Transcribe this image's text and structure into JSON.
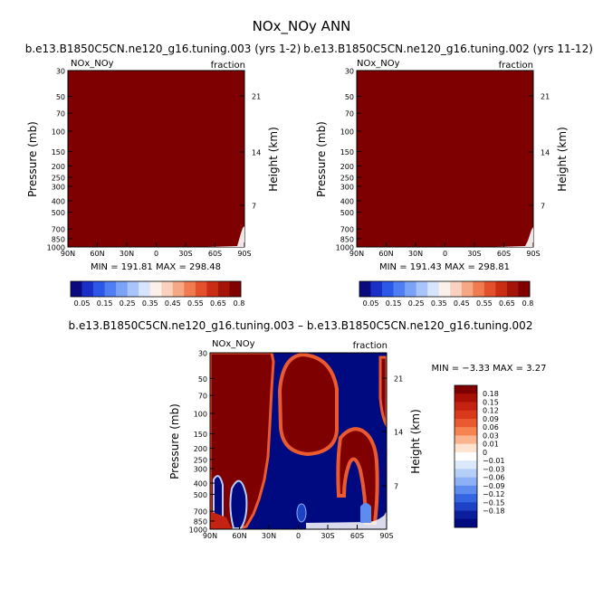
{
  "title": "NOx_NOy ANN",
  "chart_data": [
    {
      "type": "heatmap",
      "title": "b.e13.B1850C5CN.ne120_g16.tuning.003 (yrs 1-2)",
      "variable": "NOx_NOy",
      "units": "fraction",
      "ylabel": "Pressure (mb)",
      "ylabel_right": "Height (km)",
      "xticks": [
        "90N",
        "60N",
        "30N",
        "0",
        "30S",
        "60S",
        "90S"
      ],
      "yticks": [
        "30",
        "50",
        "70",
        "100",
        "150",
        "200",
        "250",
        "300",
        "400",
        "500",
        "700",
        "850",
        "1000"
      ],
      "yticks_right": [
        "21",
        "14",
        "7"
      ],
      "stats": "MIN = 191.81   MAX = 298.48",
      "colorbar_labels": [
        "0.05",
        "0.15",
        "0.25",
        "0.35",
        "0.45",
        "0.55",
        "0.65",
        "0.8"
      ],
      "field": "uniform maximum (above 0.8) everywhere"
    },
    {
      "type": "heatmap",
      "title": "b.e13.B1850C5CN.ne120_g16.tuning.002 (yrs 11-12)",
      "variable": "NOx_NOy",
      "units": "fraction",
      "ylabel": "Pressure (mb)",
      "ylabel_right": "Height (km)",
      "xticks": [
        "90N",
        "60N",
        "30N",
        "0",
        "30S",
        "60S",
        "90S"
      ],
      "yticks": [
        "30",
        "50",
        "70",
        "100",
        "150",
        "200",
        "250",
        "300",
        "400",
        "500",
        "700",
        "850",
        "1000"
      ],
      "yticks_right": [
        "21",
        "14",
        "7"
      ],
      "stats": "MIN = 191.43   MAX = 298.81",
      "colorbar_labels": [
        "0.05",
        "0.15",
        "0.25",
        "0.35",
        "0.45",
        "0.55",
        "0.65",
        "0.8"
      ],
      "field": "uniform maximum (above 0.8) everywhere"
    },
    {
      "type": "heatmap",
      "title": "b.e13.B1850C5CN.ne120_g16.tuning.003 – b.e13.B1850C5CN.ne120_g16.tuning.002",
      "variable": "NOx_NOy",
      "units": "fraction",
      "ylabel": "Pressure (mb)",
      "ylabel_right": "Height (km)",
      "xticks": [
        "90N",
        "60N",
        "30N",
        "0",
        "30S",
        "60S",
        "90S"
      ],
      "yticks": [
        "30",
        "50",
        "70",
        "100",
        "150",
        "200",
        "250",
        "300",
        "400",
        "500",
        "700",
        "850",
        "1000"
      ],
      "yticks_right": [
        "21",
        "14",
        "7"
      ],
      "stats": "MIN =  −3.33   MAX =   3.27",
      "colorbar_labels": [
        "0.18",
        "0.15",
        "0.12",
        "0.09",
        "0.06",
        "0.03",
        "0.01",
        "0",
        "−0.01",
        "−0.03",
        "−0.06",
        "−0.09",
        "−0.12",
        "−0.15",
        "−0.18"
      ],
      "field": "difference: positive (red) over high latitudes and upper equator, negative (blue) in tropical troposphere and mid-latitude bands"
    }
  ],
  "colors": {
    "seq": [
      "#0a0a80",
      "#1a2fc8",
      "#2b58e6",
      "#4f7ef2",
      "#7ba2f7",
      "#a9c4fb",
      "#d7e4fd",
      "#fbf0ea",
      "#fad1bf",
      "#f6a783",
      "#f07b50",
      "#e3512c",
      "#c92d14",
      "#a51408",
      "#800000"
    ],
    "div": [
      "#7f0000",
      "#a80f05",
      "#c42312",
      "#d9391b",
      "#ea5a30",
      "#f58450",
      "#fab48f",
      "#fde3d0",
      "#ffffff",
      "#dce9fb",
      "#b6cff8",
      "#8cb1f4",
      "#5e8cee",
      "#3366e0",
      "#1d42c6",
      "#0b1e9c",
      "#000a80"
    ]
  }
}
